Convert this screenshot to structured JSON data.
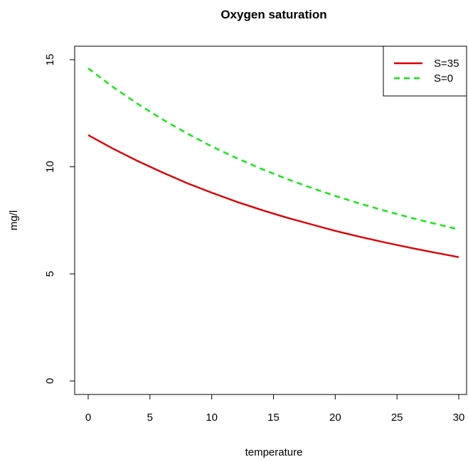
{
  "chart_data": {
    "type": "line",
    "title": "Oxygen saturation",
    "xlabel": "temperature",
    "ylabel": "mg/l",
    "xlim": [
      0,
      30
    ],
    "ylim": [
      0,
      15
    ],
    "x_ticks": [
      0,
      5,
      10,
      15,
      20,
      25,
      30
    ],
    "y_ticks": [
      0,
      5,
      10,
      15
    ],
    "grid": false,
    "legend_position": "top-right",
    "x": [
      0,
      2,
      4,
      6,
      8,
      10,
      12,
      14,
      16,
      18,
      20,
      22,
      24,
      26,
      28,
      30
    ],
    "series": [
      {
        "name": "S=35",
        "color": "#dd0000",
        "style": "solid",
        "values": [
          11.48,
          10.85,
          10.27,
          9.74,
          9.24,
          8.79,
          8.37,
          7.99,
          7.64,
          7.32,
          7.01,
          6.73,
          6.47,
          6.23,
          6.0,
          5.78
        ]
      },
      {
        "name": "S=0",
        "color": "#00ee00",
        "style": "dashed",
        "values": [
          14.6,
          13.73,
          12.94,
          12.22,
          11.56,
          10.95,
          10.41,
          9.91,
          9.45,
          9.03,
          8.64,
          8.28,
          7.95,
          7.64,
          7.35,
          7.08
        ]
      }
    ]
  }
}
